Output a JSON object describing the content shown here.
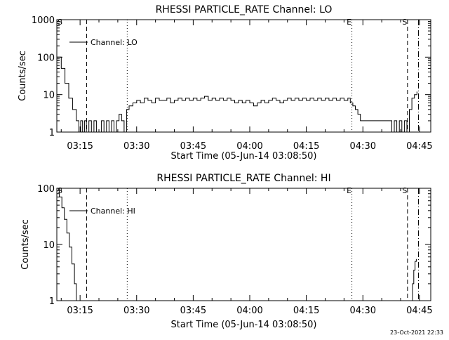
{
  "charts": [
    {
      "type": "line",
      "title": "RHESSI PARTICLE_RATE Channel: LO",
      "xlabel": "Start Time (05-Jun-14 03:08:50)",
      "ylabel": "Counts/sec",
      "yscale": "log",
      "ylim": [
        1,
        1000
      ],
      "xlim": [
        "03:08:50",
        "04:48:00"
      ],
      "y_ticks": [
        "1",
        "10",
        "100",
        "1000"
      ],
      "x_ticks": [
        "03:15",
        "03:30",
        "03:45",
        "04:00",
        "04:15",
        "04:30",
        "04:45"
      ],
      "legend": {
        "location": "top-left",
        "label": "Channel: LO"
      },
      "markers": [
        {
          "time": "03:08:50",
          "label": "S",
          "style": "none"
        },
        {
          "time": "03:16:45",
          "label": "",
          "style": "dashed"
        },
        {
          "time": "03:27:30",
          "label": "",
          "style": "dotted"
        },
        {
          "time": "04:27:05",
          "label": "E",
          "style": "dotted"
        },
        {
          "time": "04:41:50",
          "label": "S",
          "style": "dashed"
        },
        {
          "time": "04:44:45",
          "label": "",
          "style": "dashdot"
        }
      ],
      "series": [
        {
          "x": [
            "03:08:50",
            "03:10:00",
            "03:11:00",
            "03:12:00",
            "03:13:00",
            "03:14:00",
            "03:14:40",
            "03:15:10",
            "03:15:40",
            "03:16:10",
            "03:16:40",
            "03:17:20",
            "03:18:00",
            "03:18:40",
            "03:19:20",
            "03:20:00",
            "03:20:40",
            "03:21:20",
            "03:22:00",
            "03:22:40",
            "03:23:20",
            "03:24:00",
            "03:24:40",
            "03:25:20",
            "03:26:00",
            "03:26:40",
            "03:27:20",
            "03:28:00",
            "03:29:00",
            "03:30:00",
            "03:31:00",
            "03:32:00",
            "03:33:00",
            "03:34:00",
            "03:35:00",
            "03:36:00",
            "03:37:00",
            "03:38:00",
            "03:39:00",
            "03:40:00",
            "03:41:00",
            "03:42:00",
            "03:43:00",
            "03:44:00",
            "03:45:00",
            "03:46:00",
            "03:47:00",
            "03:48:00",
            "03:49:00",
            "03:50:00",
            "03:51:00",
            "03:52:00",
            "03:53:00",
            "03:54:00",
            "03:55:00",
            "03:56:00",
            "03:57:00",
            "03:58:00",
            "03:59:00",
            "04:00:00",
            "04:01:00",
            "04:02:00",
            "04:03:00",
            "04:04:00",
            "04:05:00",
            "04:06:00",
            "04:07:00",
            "04:08:00",
            "04:09:00",
            "04:10:00",
            "04:11:00",
            "04:12:00",
            "04:13:00",
            "04:14:00",
            "04:15:00",
            "04:16:00",
            "04:17:00",
            "04:18:00",
            "04:19:00",
            "04:20:00",
            "04:21:00",
            "04:22:00",
            "04:23:00",
            "04:24:00",
            "04:25:00",
            "04:26:00",
            "04:26:40",
            "04:27:20",
            "04:28:00",
            "04:28:40",
            "04:29:20",
            "04:30:00",
            "04:31:00",
            "04:33:00",
            "04:35:00",
            "04:37:00",
            "04:37:40",
            "04:38:20",
            "04:39:00",
            "04:39:40",
            "04:40:20",
            "04:41:00",
            "04:41:40",
            "04:42:20",
            "04:43:00",
            "04:43:40",
            "04:44:20"
          ],
          "y": [
            100,
            50,
            20,
            8,
            4,
            2,
            1,
            2,
            1,
            2,
            1,
            2,
            1,
            2,
            1,
            1,
            2,
            1,
            2,
            1,
            2,
            1,
            2,
            3,
            2,
            1,
            4,
            5,
            6,
            7,
            6,
            8,
            7,
            6,
            8,
            7,
            7,
            8,
            6,
            7,
            8,
            7,
            8,
            7,
            8,
            7,
            8,
            9,
            7,
            8,
            7,
            8,
            7,
            8,
            7,
            6,
            7,
            6,
            7,
            6,
            5,
            6,
            7,
            6,
            7,
            8,
            7,
            6,
            7,
            8,
            7,
            8,
            7,
            8,
            7,
            8,
            7,
            8,
            7,
            8,
            7,
            8,
            7,
            8,
            7,
            8,
            6,
            5,
            4,
            3,
            2,
            2,
            2,
            2,
            2,
            2,
            1,
            2,
            1,
            2,
            1,
            2,
            1,
            4,
            8,
            10,
            12
          ]
        }
      ]
    },
    {
      "type": "line",
      "title": "RHESSI PARTICLE_RATE Channel: HI",
      "xlabel": "Start Time (05-Jun-14 03:08:50)",
      "ylabel": "Counts/sec",
      "yscale": "log",
      "ylim": [
        1,
        100
      ],
      "xlim": [
        "03:08:50",
        "04:48:00"
      ],
      "y_ticks": [
        "1",
        "10",
        "100"
      ],
      "x_ticks": [
        "03:15",
        "03:30",
        "03:45",
        "04:00",
        "04:15",
        "04:30",
        "04:45"
      ],
      "legend": {
        "location": "top-left",
        "label": "Channel: HI"
      },
      "markers": [
        {
          "time": "03:08:50",
          "label": "S",
          "style": "none"
        },
        {
          "time": "03:16:45",
          "label": "",
          "style": "dashed"
        },
        {
          "time": "03:27:30",
          "label": "",
          "style": "dotted"
        },
        {
          "time": "04:27:05",
          "label": "E",
          "style": "dotted"
        },
        {
          "time": "04:41:50",
          "label": "S",
          "style": "dashed"
        },
        {
          "time": "04:44:45",
          "label": "",
          "style": "dashdot"
        }
      ],
      "series": [
        {
          "x": [
            "03:08:50",
            "03:09:30",
            "03:10:10",
            "03:10:50",
            "03:11:30",
            "03:12:10",
            "03:12:50",
            "03:13:30",
            "03:14:00"
          ],
          "y": [
            100,
            70,
            45,
            28,
            16,
            9,
            4.5,
            2,
            1
          ]
        },
        {
          "x": [
            "04:42:45",
            "04:43:10",
            "04:43:30",
            "04:43:50",
            "04:44:10"
          ],
          "y": [
            1,
            2,
            3.5,
            5,
            5.5
          ]
        }
      ]
    }
  ],
  "footer": {
    "stamp": "23-Oct-2021 22:33"
  }
}
